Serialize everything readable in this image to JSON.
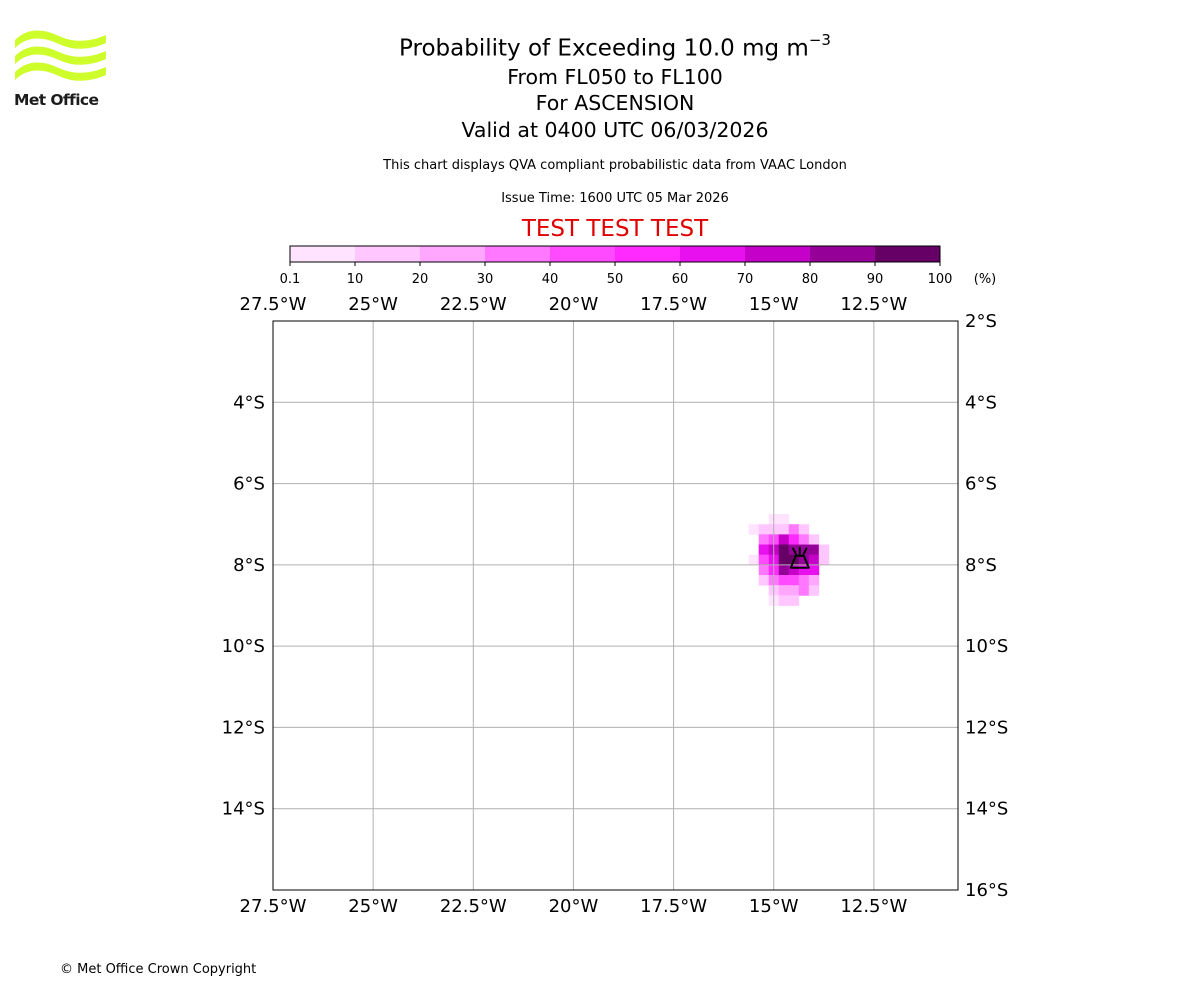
{
  "header": {
    "logo_text": "Met Office",
    "title_main": "Probability of Exceeding 10.0 mg m",
    "title_exponent": "−3",
    "title_levels": "From FL050 to FL100",
    "title_region": "For ASCENSION",
    "title_valid": "Valid at 0400 UTC 06/03/2026",
    "subtitle": "This chart displays QVA compliant probabilistic data from VAAC London",
    "issue_time": "Issue Time: 1600 UTC 05 Mar 2026",
    "test_banner": "TEST TEST TEST"
  },
  "footer": {
    "copyright": "© Met Office Crown Copyright"
  },
  "colors": {
    "logo": "#cdfd2a",
    "test_banner": "#e00000",
    "gridlines": "#b0b0b0"
  },
  "colorbar": {
    "unit": "(%)",
    "ticks": [
      "0.1",
      "10",
      "20",
      "30",
      "40",
      "50",
      "60",
      "70",
      "80",
      "90",
      "100"
    ],
    "bins": [
      {
        "from": 0.1,
        "to": 10,
        "color": "#ffe3ff"
      },
      {
        "from": 10,
        "to": 20,
        "color": "#ffc6ff"
      },
      {
        "from": 20,
        "to": 30,
        "color": "#ffa6ff"
      },
      {
        "from": 30,
        "to": 40,
        "color": "#ff78ff"
      },
      {
        "from": 40,
        "to": 50,
        "color": "#ff4aff"
      },
      {
        "from": 50,
        "to": 60,
        "color": "#ff2aff"
      },
      {
        "from": 60,
        "to": 70,
        "color": "#e810ef"
      },
      {
        "from": 70,
        "to": 80,
        "color": "#c400c9"
      },
      {
        "from": 80,
        "to": 90,
        "color": "#950099"
      },
      {
        "from": 90,
        "to": 100,
        "color": "#670066"
      }
    ]
  },
  "chart_data": {
    "type": "heatmap",
    "title": "Probability of Exceeding 10.0 mg m−3",
    "lon_range": [
      -27.5,
      -10.4
    ],
    "lat_range": [
      -16,
      -2
    ],
    "grid": true,
    "x_ticks": [
      {
        "value": -27.5,
        "label": "27.5°W"
      },
      {
        "value": -25,
        "label": "25°W"
      },
      {
        "value": -22.5,
        "label": "22.5°W"
      },
      {
        "value": -20,
        "label": "20°W"
      },
      {
        "value": -17.5,
        "label": "17.5°W"
      },
      {
        "value": -15,
        "label": "15°W"
      },
      {
        "value": -12.5,
        "label": "12.5°W"
      }
    ],
    "y_ticks": [
      {
        "value": -2,
        "label": "2°S"
      },
      {
        "value": -4,
        "label": "4°S"
      },
      {
        "value": -6,
        "label": "6°S"
      },
      {
        "value": -8,
        "label": "8°S"
      },
      {
        "value": -10,
        "label": "10°S"
      },
      {
        "value": -12,
        "label": "12°S"
      },
      {
        "value": -14,
        "label": "14°S"
      },
      {
        "value": -16,
        "label": "16°S"
      }
    ],
    "cell_lon": 0.25,
    "cell_lat": 0.25,
    "volcano": {
      "lon": -14.35,
      "lat": -7.9
    },
    "cells": [
      {
        "lon": -15.0,
        "lat": -6.875,
        "p": 5
      },
      {
        "lon": -14.75,
        "lat": -6.875,
        "p": 5
      },
      {
        "lon": -15.5,
        "lat": -7.125,
        "p": 5
      },
      {
        "lon": -15.25,
        "lat": -7.125,
        "p": 15
      },
      {
        "lon": -15.0,
        "lat": -7.125,
        "p": 15
      },
      {
        "lon": -14.75,
        "lat": -7.125,
        "p": 15
      },
      {
        "lon": -14.5,
        "lat": -7.125,
        "p": 35
      },
      {
        "lon": -14.25,
        "lat": -7.125,
        "p": 15
      },
      {
        "lon": -15.25,
        "lat": -7.375,
        "p": 35
      },
      {
        "lon": -15.0,
        "lat": -7.375,
        "p": 45
      },
      {
        "lon": -14.75,
        "lat": -7.375,
        "p": 75
      },
      {
        "lon": -14.5,
        "lat": -7.375,
        "p": 55
      },
      {
        "lon": -14.25,
        "lat": -7.375,
        "p": 35
      },
      {
        "lon": -14.0,
        "lat": -7.375,
        "p": 15
      },
      {
        "lon": -15.25,
        "lat": -7.625,
        "p": 65
      },
      {
        "lon": -15.0,
        "lat": -7.625,
        "p": 75
      },
      {
        "lon": -14.75,
        "lat": -7.625,
        "p": 95
      },
      {
        "lon": -14.5,
        "lat": -7.625,
        "p": 85
      },
      {
        "lon": -14.25,
        "lat": -7.625,
        "p": 85
      },
      {
        "lon": -14.0,
        "lat": -7.625,
        "p": 85
      },
      {
        "lon": -13.75,
        "lat": -7.625,
        "p": 15
      },
      {
        "lon": -15.5,
        "lat": -7.875,
        "p": 5
      },
      {
        "lon": -15.25,
        "lat": -7.875,
        "p": 45
      },
      {
        "lon": -15.0,
        "lat": -7.875,
        "p": 65
      },
      {
        "lon": -14.75,
        "lat": -7.875,
        "p": 95
      },
      {
        "lon": -14.5,
        "lat": -7.875,
        "p": 95
      },
      {
        "lon": -14.25,
        "lat": -7.875,
        "p": 85
      },
      {
        "lon": -14.0,
        "lat": -7.875,
        "p": 75
      },
      {
        "lon": -13.75,
        "lat": -7.875,
        "p": 15
      },
      {
        "lon": -15.25,
        "lat": -8.125,
        "p": 35
      },
      {
        "lon": -15.0,
        "lat": -8.125,
        "p": 55
      },
      {
        "lon": -14.75,
        "lat": -8.125,
        "p": 85
      },
      {
        "lon": -14.5,
        "lat": -8.125,
        "p": 75
      },
      {
        "lon": -14.25,
        "lat": -8.125,
        "p": 65
      },
      {
        "lon": -14.0,
        "lat": -8.125,
        "p": 65
      },
      {
        "lon": -15.25,
        "lat": -8.375,
        "p": 15
      },
      {
        "lon": -15.0,
        "lat": -8.375,
        "p": 35
      },
      {
        "lon": -14.75,
        "lat": -8.375,
        "p": 45
      },
      {
        "lon": -14.5,
        "lat": -8.375,
        "p": 45
      },
      {
        "lon": -14.25,
        "lat": -8.375,
        "p": 35
      },
      {
        "lon": -14.0,
        "lat": -8.375,
        "p": 25
      },
      {
        "lon": -15.0,
        "lat": -8.625,
        "p": 15
      },
      {
        "lon": -14.75,
        "lat": -8.625,
        "p": 25
      },
      {
        "lon": -14.5,
        "lat": -8.625,
        "p": 25
      },
      {
        "lon": -14.25,
        "lat": -8.625,
        "p": 35
      },
      {
        "lon": -14.0,
        "lat": -8.625,
        "p": 15
      },
      {
        "lon": -15.0,
        "lat": -8.875,
        "p": 5
      },
      {
        "lon": -14.75,
        "lat": -8.875,
        "p": 15
      },
      {
        "lon": -14.5,
        "lat": -8.875,
        "p": 15
      }
    ]
  }
}
